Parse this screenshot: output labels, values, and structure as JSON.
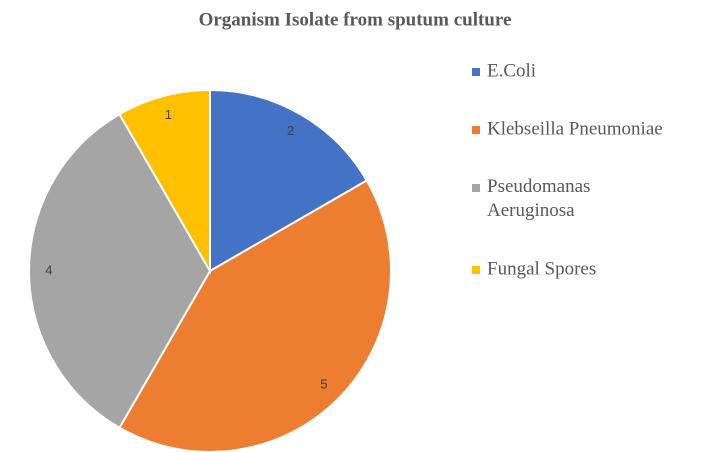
{
  "chart_data": {
    "type": "pie",
    "title": "Organism Isolate from sputum culture",
    "categories": [
      "E.Coli",
      "Klebseilla Pneumoniae",
      "Pseudomanas Aeruginosa",
      "Fungal Spores"
    ],
    "values": [
      2,
      5,
      4,
      1
    ],
    "colors": [
      "#4472c4",
      "#ed7d31",
      "#a5a5a5",
      "#ffc000"
    ],
    "legend": "right"
  }
}
